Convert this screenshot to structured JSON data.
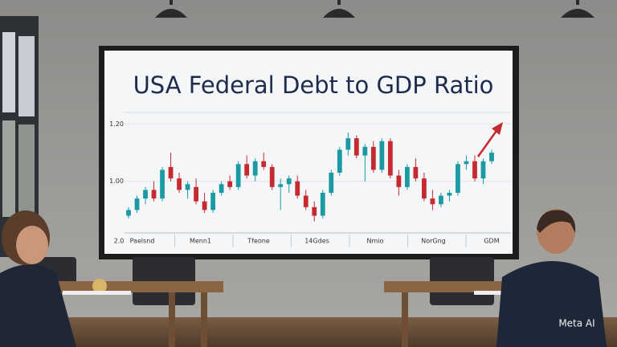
{
  "scene": {
    "watermark": "Meta AI"
  },
  "chart_data": {
    "type": "candlestick",
    "title": "USA Federal Debt to GDP Ratio",
    "corner_label": "2.0",
    "categories": [
      "Paelsnd",
      "Menn1",
      "Tfeone",
      "14Gdes",
      "Nmio",
      "NorGng",
      "GDM"
    ],
    "ylim": [
      0.82,
      1.24
    ],
    "yticks": [
      {
        "value": 1.2,
        "label": "1.20"
      },
      {
        "value": 1.0,
        "label": "1.00"
      }
    ],
    "grid": true,
    "up_color": "#1b9aa3",
    "down_color": "#c42a30",
    "candles": [
      [
        0.88,
        0.91,
        0.87,
        0.9
      ],
      [
        0.9,
        0.95,
        0.89,
        0.94
      ],
      [
        0.94,
        0.98,
        0.92,
        0.97
      ],
      [
        0.97,
        1.0,
        0.93,
        0.94
      ],
      [
        0.94,
        1.05,
        0.93,
        1.04
      ],
      [
        1.05,
        1.1,
        1.0,
        1.01
      ],
      [
        1.01,
        1.03,
        0.96,
        0.97
      ],
      [
        0.97,
        1.0,
        0.94,
        0.99
      ],
      [
        0.98,
        1.01,
        0.92,
        0.93
      ],
      [
        0.93,
        0.96,
        0.89,
        0.9
      ],
      [
        0.9,
        0.97,
        0.89,
        0.96
      ],
      [
        0.96,
        1.0,
        0.95,
        0.99
      ],
      [
        1.0,
        1.02,
        0.97,
        0.98
      ],
      [
        0.98,
        1.07,
        0.97,
        1.06
      ],
      [
        1.06,
        1.09,
        1.01,
        1.02
      ],
      [
        1.02,
        1.08,
        1.0,
        1.07
      ],
      [
        1.07,
        1.1,
        1.04,
        1.05
      ],
      [
        1.05,
        1.06,
        0.97,
        0.98
      ],
      [
        0.98,
        1.01,
        0.9,
        0.99
      ],
      [
        0.99,
        1.02,
        0.96,
        1.01
      ],
      [
        1.0,
        1.02,
        0.94,
        0.95
      ],
      [
        0.95,
        0.97,
        0.9,
        0.91
      ],
      [
        0.91,
        0.93,
        0.86,
        0.88
      ],
      [
        0.88,
        0.97,
        0.87,
        0.96
      ],
      [
        0.96,
        1.04,
        0.95,
        1.03
      ],
      [
        1.03,
        1.12,
        1.02,
        1.11
      ],
      [
        1.11,
        1.17,
        1.09,
        1.15
      ],
      [
        1.15,
        1.16,
        1.08,
        1.09
      ],
      [
        1.09,
        1.13,
        1.0,
        1.12
      ],
      [
        1.12,
        1.14,
        1.03,
        1.04
      ],
      [
        1.04,
        1.15,
        1.03,
        1.14
      ],
      [
        1.14,
        1.15,
        1.01,
        1.02
      ],
      [
        1.02,
        1.04,
        0.95,
        0.98
      ],
      [
        0.98,
        1.06,
        0.97,
        1.05
      ],
      [
        1.05,
        1.08,
        1.0,
        1.01
      ],
      [
        1.01,
        1.03,
        0.93,
        0.94
      ],
      [
        0.94,
        0.97,
        0.9,
        0.92
      ],
      [
        0.92,
        0.96,
        0.91,
        0.95
      ],
      [
        0.95,
        0.97,
        0.93,
        0.96
      ],
      [
        0.96,
        1.07,
        0.95,
        1.06
      ],
      [
        1.06,
        1.09,
        1.04,
        1.07
      ],
      [
        1.07,
        1.09,
        1.0,
        1.01
      ],
      [
        1.01,
        1.08,
        0.99,
        1.07
      ],
      [
        1.07,
        1.11,
        1.06,
        1.1
      ]
    ]
  }
}
